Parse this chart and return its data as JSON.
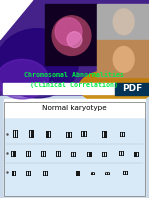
{
  "fig_width": 1.49,
  "fig_height": 1.98,
  "dpi": 100,
  "title_text_line1": "Chromosomal Abnormalities",
  "title_text_line2": "(Clinical Correlation)",
  "title_color": "#00ee44",
  "title_fontsize": 4.8,
  "karyotype_title": "Normal karyotype",
  "karyotype_title_fontsize": 5.2,
  "top_purple": "#5533aa",
  "mid_purple": "#3322aa",
  "orange_blob": "#cc8800",
  "chrom_dark": "#330022",
  "chrom_magenta": "#aa3377",
  "child1_color": "#aaaaaa",
  "child2_color": "#cc9966",
  "white": "#ffffff",
  "pdf_bg": "#003355",
  "kary_border": "#999999",
  "kary_inner_bg": "#cce0f0",
  "chrom_color": "#111111"
}
